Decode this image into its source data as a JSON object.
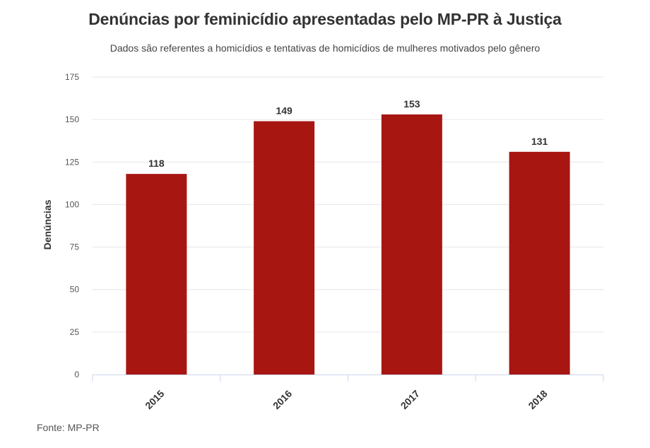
{
  "chart_data": {
    "type": "bar",
    "title": "Denúncias por feminicídio apresentadas pelo MP-PR à Justiça",
    "subtitle": "Dados são referentes a homicídios e tentativas de homicídios de mulheres motivados pelo gênero",
    "categories": [
      "2015",
      "2016",
      "2017",
      "2018"
    ],
    "values": [
      118,
      149,
      153,
      131
    ],
    "ylabel": "Denúncias",
    "xlabel": "",
    "ylim": [
      0,
      175
    ],
    "yticks": [
      0,
      25,
      50,
      75,
      100,
      125,
      150,
      175
    ],
    "grid": true,
    "bar_color": "#a81612",
    "source": "Fonte: MP-PR"
  }
}
